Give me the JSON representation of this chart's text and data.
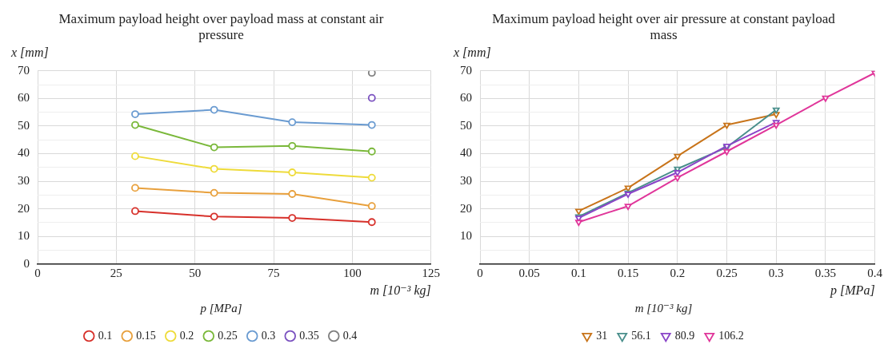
{
  "chart_data": [
    {
      "type": "line",
      "title": "Maximum payload height over payload mass at constant air pressure",
      "xlabel": "m [10⁻³ kg]",
      "ylabel": "x [mm]",
      "legend_title": "p [MPa]",
      "x": [
        31,
        56.1,
        80.9,
        106.2
      ],
      "xlim": [
        0,
        125
      ],
      "xticks": [
        0,
        25,
        50,
        75,
        100,
        125
      ],
      "ylim": [
        0,
        70
      ],
      "yticks": [
        0,
        {
          "value": 5,
          "label": null
        },
        10,
        {
          "value": 15,
          "label": null
        },
        20,
        {
          "value": 25,
          "label": null
        },
        30,
        {
          "value": 35,
          "label": null
        },
        40,
        {
          "value": 45,
          "label": null
        },
        50,
        {
          "value": 55,
          "label": null
        },
        60,
        {
          "value": 65,
          "label": null
        },
        70
      ],
      "grid": true,
      "legend": "bottom",
      "marker": "circle",
      "line_style": "solid",
      "series": [
        {
          "name": "0.1",
          "color": "#d7312b",
          "values": [
            19.2,
            17.2,
            16.7,
            15.2
          ]
        },
        {
          "name": "0.15",
          "color": "#e8a03c",
          "values": [
            27.6,
            25.8,
            25.4,
            21.0
          ]
        },
        {
          "name": "0.2",
          "color": "#eedb3a",
          "values": [
            39.1,
            34.5,
            33.2,
            31.3
          ]
        },
        {
          "name": "0.25",
          "color": "#7ab83a",
          "values": [
            50.4,
            42.3,
            42.8,
            40.8
          ]
        },
        {
          "name": "0.3",
          "color": "#6a9bd1",
          "values": [
            54.3,
            55.9,
            51.4,
            50.4
          ]
        },
        {
          "name": "0.35",
          "color": "#7b52c0",
          "values": [
            null,
            null,
            null,
            60.2
          ]
        },
        {
          "name": "0.4",
          "color": "#7f7f7f",
          "values": [
            null,
            null,
            null,
            69.3
          ]
        }
      ]
    },
    {
      "type": "line",
      "title": "Maximum payload height over air pressure at constant payload mass",
      "xlabel": "p [MPa]",
      "ylabel": "x [mm]",
      "legend_title": "m [10⁻³ kg]",
      "xlim": [
        0,
        0.4
      ],
      "xticks": [
        0,
        0.05,
        0.1,
        0.15,
        0.2,
        0.25,
        0.3,
        0.35,
        0.4
      ],
      "ylim": [
        0,
        70
      ],
      "yticks": [
        {
          "value": 0,
          "label": null
        },
        {
          "value": 5,
          "label": null
        },
        10,
        {
          "value": 15,
          "label": null
        },
        20,
        {
          "value": 25,
          "label": null
        },
        30,
        {
          "value": 35,
          "label": null
        },
        40,
        {
          "value": 45,
          "label": null
        },
        50,
        {
          "value": 55,
          "label": null
        },
        60,
        {
          "value": 65,
          "label": null
        },
        70
      ],
      "grid": true,
      "legend": "bottom",
      "marker": "triangle",
      "line_style": "solid",
      "series": [
        {
          "name": "31",
          "color": "#c8741a",
          "x": [
            0.1,
            0.15,
            0.2,
            0.25,
            0.3
          ],
          "values": [
            19.2,
            27.6,
            39.1,
            50.4,
            54.3
          ]
        },
        {
          "name": "56.1",
          "color": "#4a8f8c",
          "x": [
            0.1,
            0.15,
            0.2,
            0.25,
            0.3
          ],
          "values": [
            17.2,
            25.8,
            34.5,
            42.3,
            55.9
          ]
        },
        {
          "name": "80.9",
          "color": "#8a45c8",
          "x": [
            0.1,
            0.15,
            0.2,
            0.25,
            0.3
          ],
          "values": [
            16.7,
            25.4,
            33.2,
            42.8,
            51.4
          ]
        },
        {
          "name": "106.2",
          "color": "#e0369a",
          "x": [
            0.1,
            0.15,
            0.2,
            0.25,
            0.3,
            0.35,
            0.4
          ],
          "values": [
            15.2,
            21.0,
            31.3,
            40.8,
            50.4,
            60.2,
            69.3
          ]
        }
      ]
    }
  ]
}
